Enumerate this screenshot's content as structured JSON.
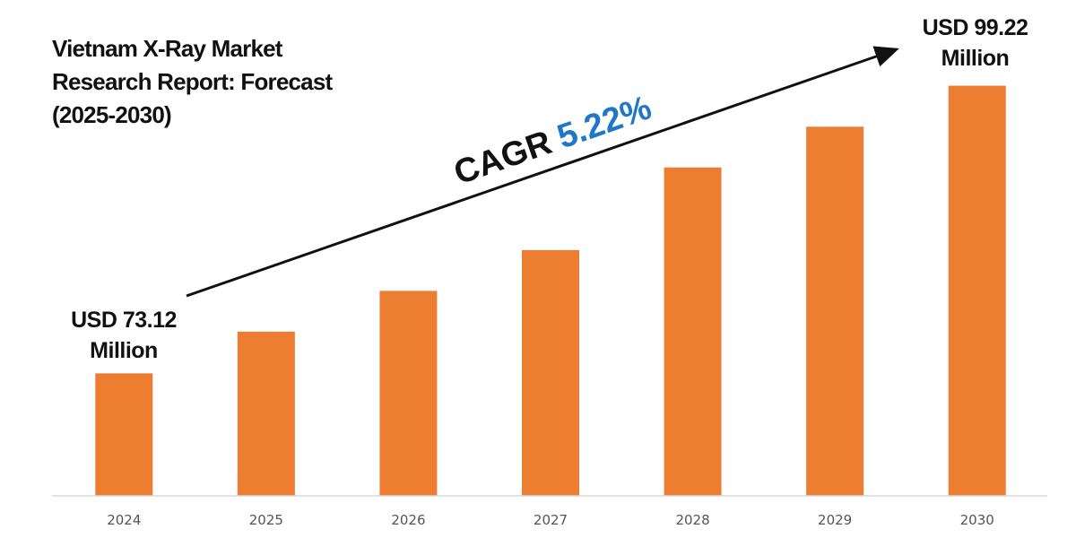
{
  "chart_data": {
    "type": "bar",
    "title": [
      "Vietnam X-Ray Market",
      "Research Report: Forecast",
      "(2025-2030)"
    ],
    "categories": [
      "2024",
      "2025",
      "2026",
      "2027",
      "2028",
      "2029",
      "2030"
    ],
    "values": [
      73.12,
      76.9,
      80.6,
      84.3,
      91.8,
      95.5,
      99.22
    ],
    "ylim": [
      62,
      100
    ],
    "grid": false,
    "bar_color": "#ED7D31",
    "annotations": {
      "start_label": [
        "USD 73.12",
        "Million"
      ],
      "end_label": [
        "USD 99.22",
        "Million"
      ],
      "cagr_label": "CAGR",
      "cagr_value": "5.22%",
      "cagr_color": "#1F77C8"
    }
  }
}
